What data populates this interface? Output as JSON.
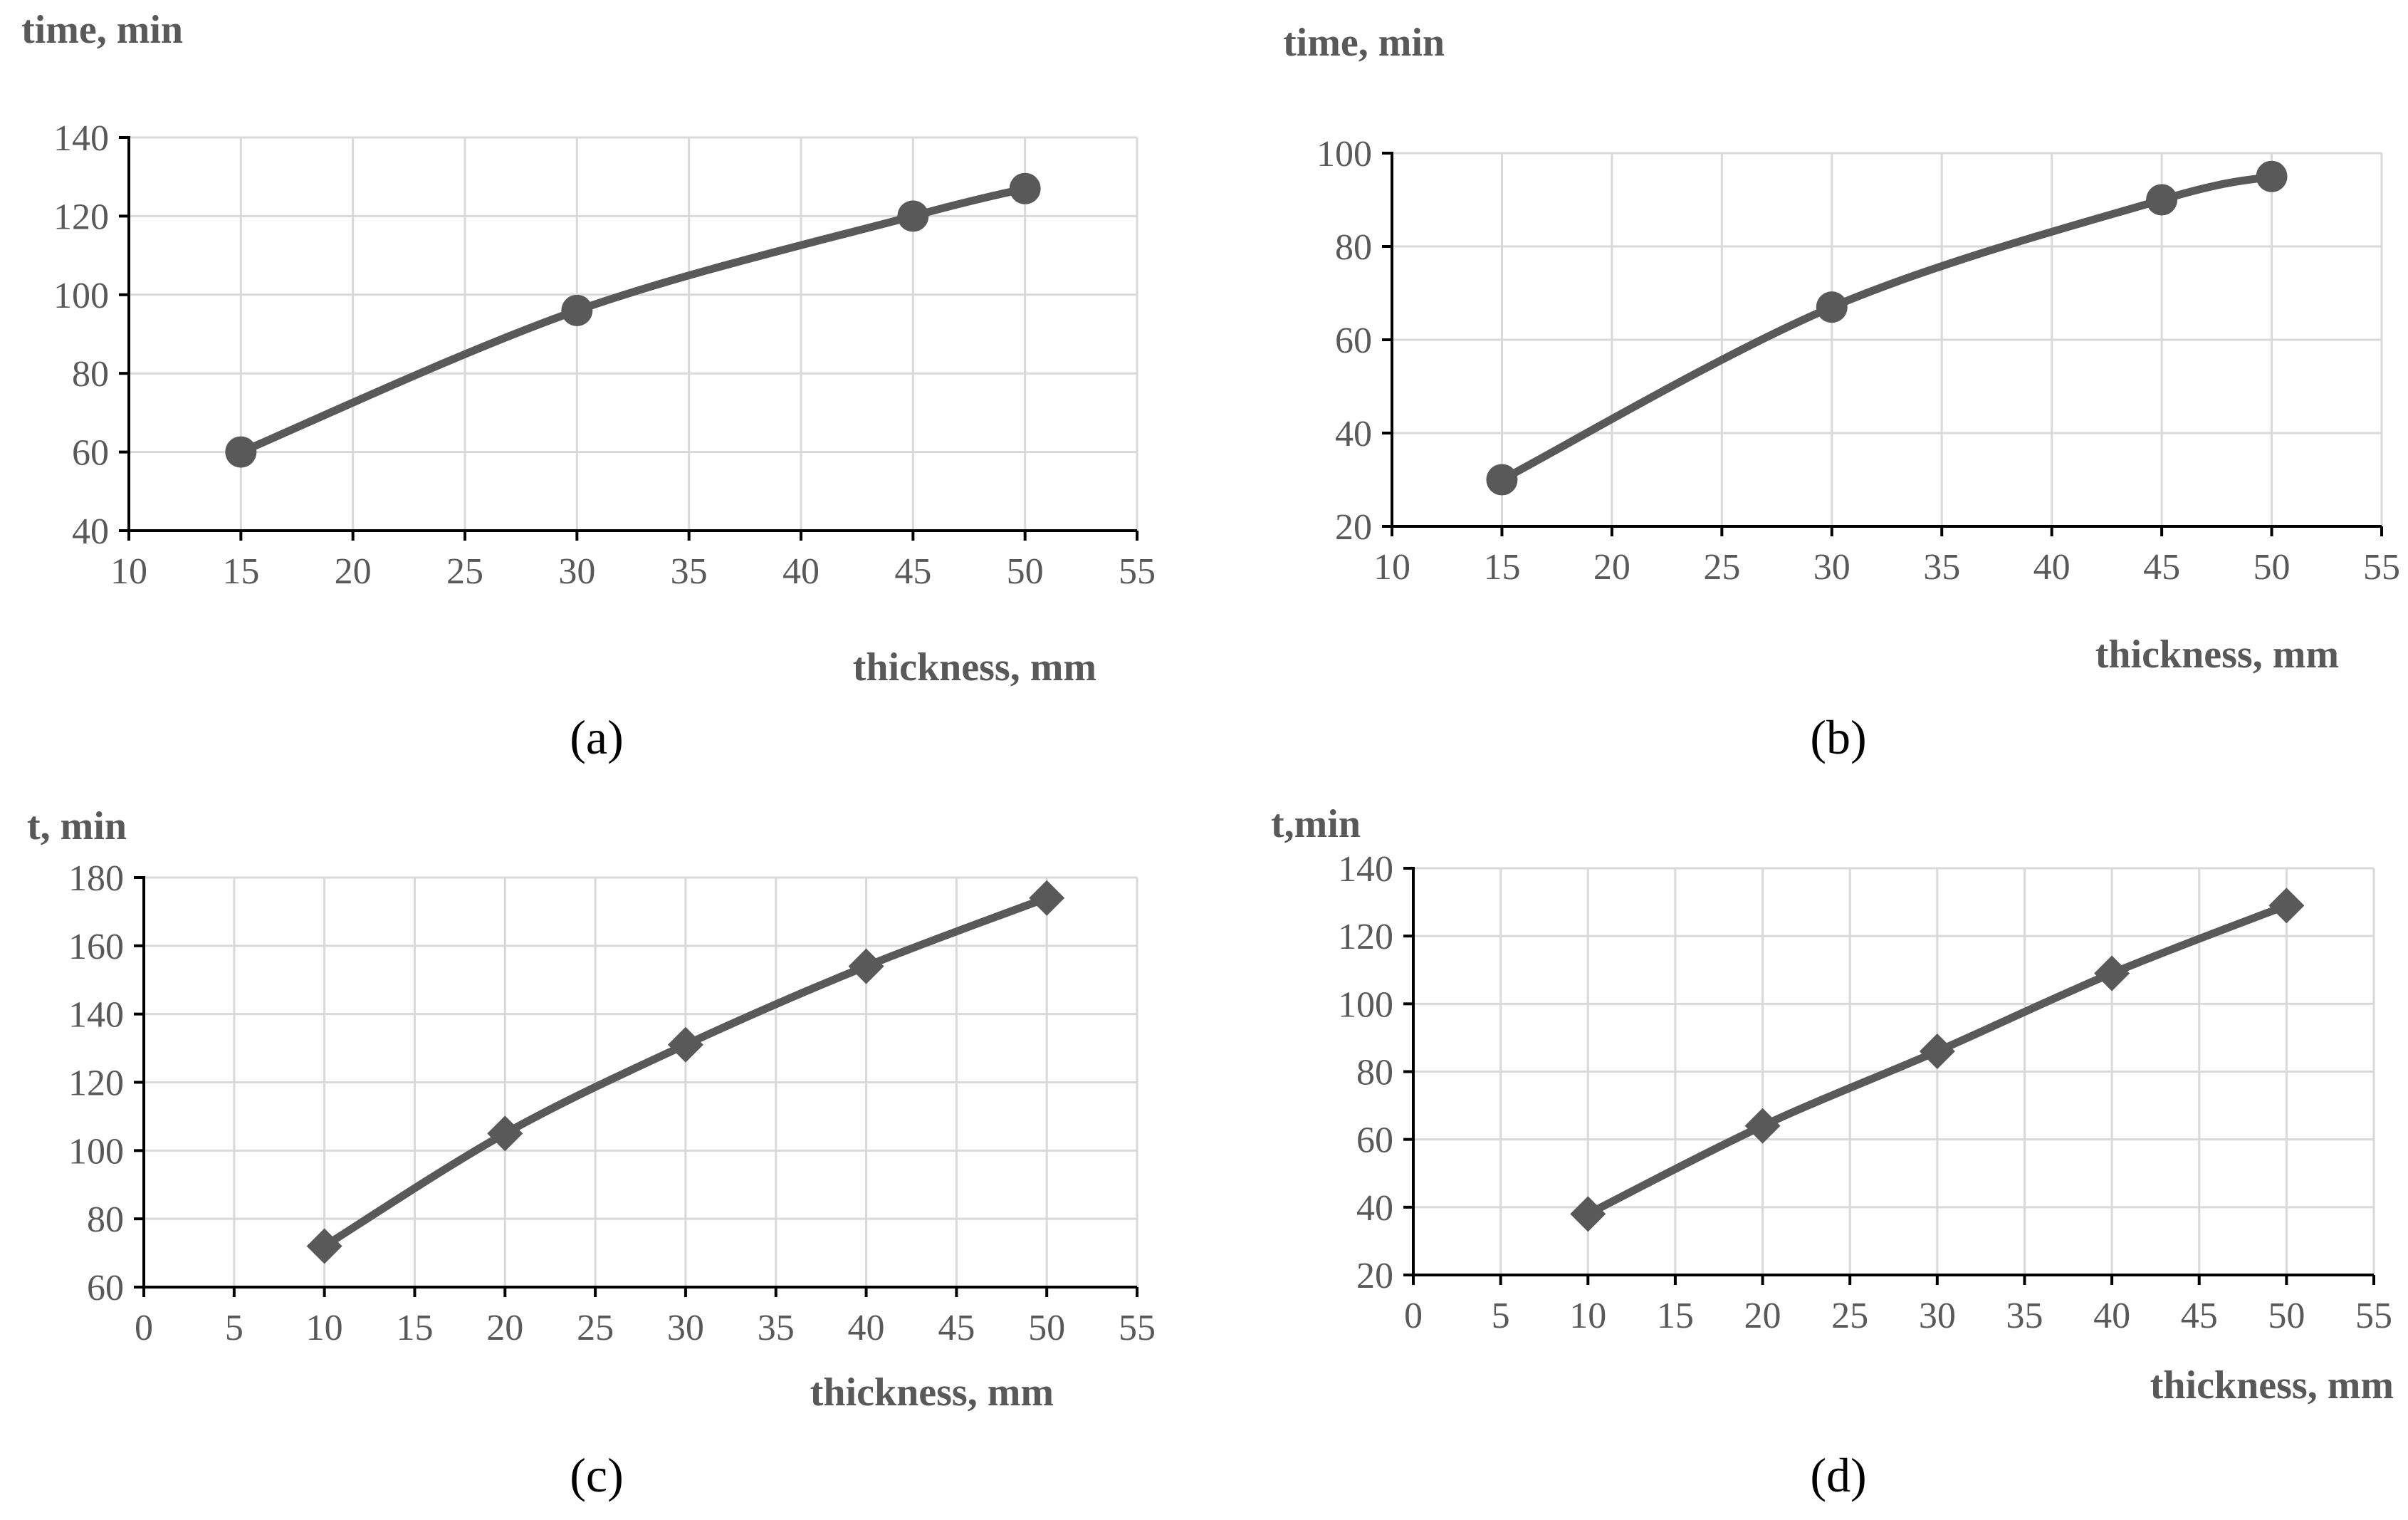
{
  "colors": {
    "series": "#595959",
    "grid": "#d9d9d9",
    "axis": "#000000",
    "text": "#595959"
  },
  "chart_data": [
    {
      "panel": "(a)",
      "type": "line",
      "marker": "circle",
      "ylabel": "time, min",
      "xlabel": "thickness, mm",
      "xlim": [
        10,
        55
      ],
      "ylim": [
        40,
        140
      ],
      "xstep": 5,
      "ystep": 20,
      "xticks": [
        "10",
        "15",
        "20",
        "25",
        "30",
        "35",
        "40",
        "45",
        "50",
        "55"
      ],
      "yticks": [
        "40",
        "60",
        "80",
        "100",
        "120",
        "140"
      ],
      "x": [
        15,
        30,
        45,
        50
      ],
      "y": [
        60,
        96,
        120,
        127
      ],
      "grid": true
    },
    {
      "panel": "(b)",
      "type": "line",
      "marker": "circle",
      "ylabel": "time, min",
      "xlabel": "thickness, mm",
      "xlim": [
        10,
        55
      ],
      "ylim": [
        20,
        100
      ],
      "xstep": 5,
      "ystep": 20,
      "xticks": [
        "10",
        "15",
        "20",
        "25",
        "30",
        "35",
        "40",
        "45",
        "50",
        "55"
      ],
      "yticks": [
        "20",
        "40",
        "60",
        "80",
        "100"
      ],
      "x": [
        15,
        30,
        45,
        50
      ],
      "y": [
        30,
        67,
        90,
        95
      ],
      "grid": true
    },
    {
      "panel": "(c)",
      "type": "line",
      "marker": "diamond",
      "ylabel": "t, min",
      "xlabel": "thickness, mm",
      "xlim": [
        0,
        55
      ],
      "ylim": [
        60,
        180
      ],
      "xstep": 5,
      "ystep": 20,
      "xticks": [
        "0",
        "5",
        "10",
        "15",
        "20",
        "25",
        "30",
        "35",
        "40",
        "45",
        "50",
        "55"
      ],
      "yticks": [
        "60",
        "80",
        "100",
        "120",
        "140",
        "160",
        "180"
      ],
      "x": [
        10,
        20,
        30,
        40,
        50
      ],
      "y": [
        72,
        105,
        131,
        154,
        174
      ],
      "grid": true
    },
    {
      "panel": "(d)",
      "type": "line",
      "marker": "diamond",
      "ylabel": "t,min",
      "xlabel": "thickness, mm",
      "xlim": [
        0,
        55
      ],
      "ylim": [
        20,
        140
      ],
      "xstep": 5,
      "ystep": 20,
      "xticks": [
        "0",
        "5",
        "10",
        "15",
        "20",
        "25",
        "30",
        "35",
        "40",
        "45",
        "50",
        "55"
      ],
      "yticks": [
        "20",
        "40",
        "60",
        "80",
        "100",
        "120",
        "140"
      ],
      "x": [
        10,
        20,
        30,
        40,
        50
      ],
      "y": [
        38,
        64,
        86,
        109,
        129
      ],
      "grid": true
    }
  ]
}
